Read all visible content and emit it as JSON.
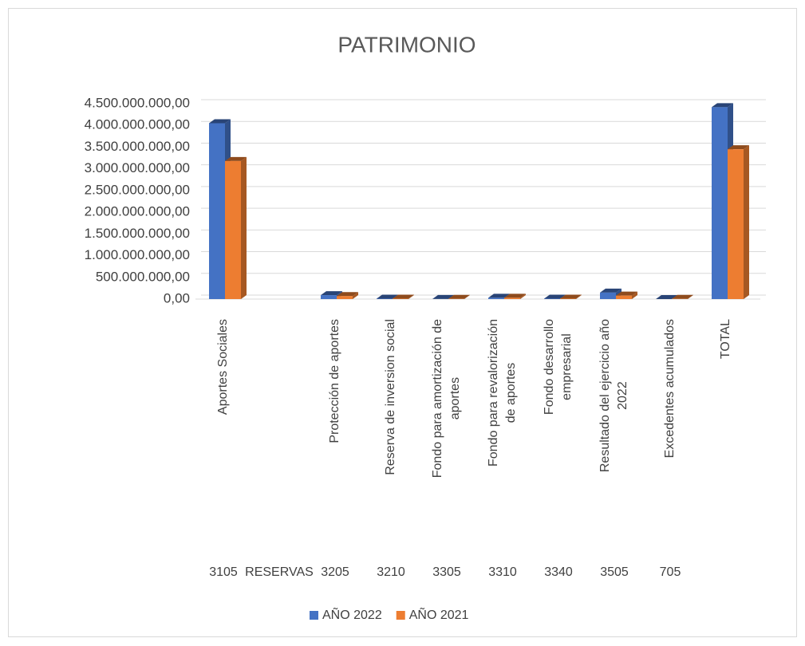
{
  "chart_data": {
    "type": "bar3d",
    "title": "PATRIMONIO",
    "categories": [
      "Aportes Sociales",
      null,
      "Protección de aportes",
      "Reserva de inversion social",
      "Fondo para amortización de aportes",
      "Fondo para revalorización de aportes",
      "Fondo desarrollo empresarial",
      "Resultado del ejercicio año 2022",
      "Excedentes acumulados",
      "TOTAL"
    ],
    "outer_categories": [
      "3105",
      "RESERVAS",
      "3205",
      "3210",
      "3305",
      "3310",
      "3340",
      "3505",
      "705",
      null
    ],
    "series": [
      {
        "name": "AÑO 2022",
        "color": "#4472c4",
        "values": [
          4050000000,
          null,
          90000000,
          10000000,
          2000000,
          30000000,
          10000000,
          150000000,
          0,
          4420000000
        ]
      },
      {
        "name": "AÑO 2021",
        "color": "#ed7d31",
        "values": [
          3180000000,
          null,
          70000000,
          10000000,
          5000000,
          30000000,
          10000000,
          80000000,
          5000000,
          3450000000
        ]
      }
    ],
    "ylim": [
      0,
      4500000000
    ],
    "yticks": [
      {
        "value": 0,
        "label": "0,00"
      },
      {
        "value": 500000000,
        "label": "500.000.000,00"
      },
      {
        "value": 1000000000,
        "label": "1.000.000.000,00"
      },
      {
        "value": 1500000000,
        "label": "1.500.000.000,00"
      },
      {
        "value": 2000000000,
        "label": "2.000.000.000,00"
      },
      {
        "value": 2500000000,
        "label": "2.500.000.000,00"
      },
      {
        "value": 3000000000,
        "label": "3.000.000.000,00"
      },
      {
        "value": 3500000000,
        "label": "3.500.000.000,00"
      },
      {
        "value": 4000000000,
        "label": "4.000.000.000,00"
      },
      {
        "value": 4500000000,
        "label": "4.500.000.000,00"
      }
    ],
    "grid": true,
    "legend": "bottom"
  }
}
